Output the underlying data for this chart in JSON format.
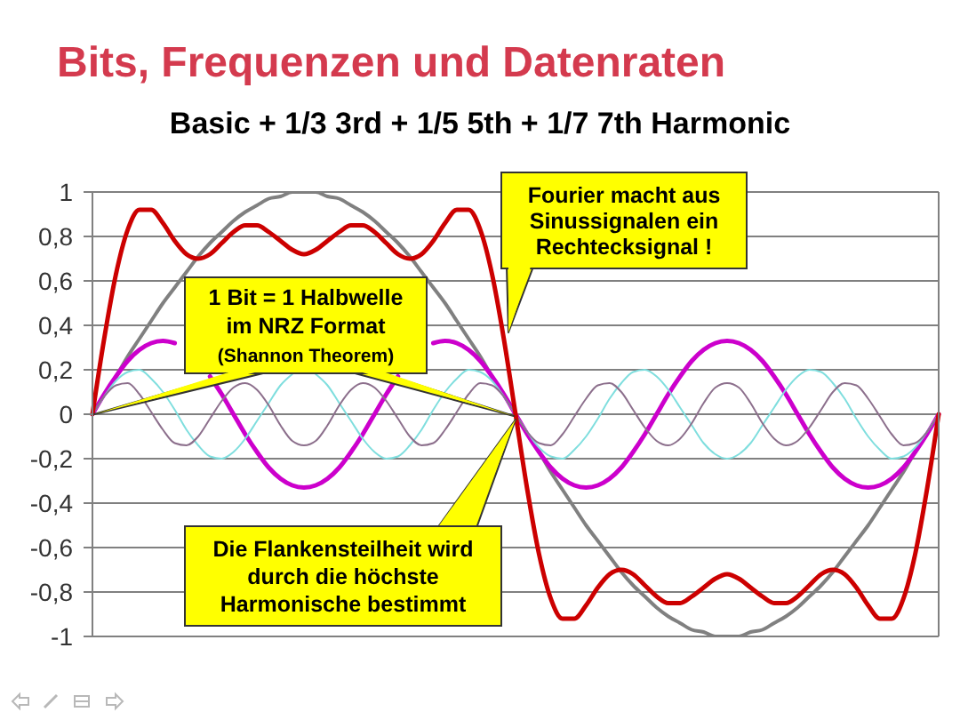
{
  "chart_data": {
    "type": "line",
    "title": "Bits, Frequenzen und Datenraten",
    "subtitle": "Basic + 1/3 3rd + 1/5 5th + 1/7 7th Harmonic",
    "annotations": [
      "Fourier macht aus\nSinussignalen ein\nRechtecksignal !",
      "1 Bit = 1 Halbwelle\nim NRZ Format\n(Shannon Theorem)",
      "Die Flankensteilheit wird\ndurch die höchste\nHarmonische bestimmt"
    ],
    "categories": [
      null,
      null,
      null,
      null,
      null,
      null,
      null,
      null,
      null,
      null,
      null,
      null,
      null,
      null,
      null,
      null,
      null,
      null,
      null,
      null,
      null,
      null,
      null,
      null,
      null,
      null,
      null,
      null,
      null,
      null,
      null,
      null,
      null,
      null,
      null,
      null,
      null,
      null,
      null,
      null,
      null,
      null,
      null,
      null,
      null,
      null,
      null,
      null,
      null,
      null,
      null,
      null,
      null,
      null,
      null,
      null,
      null,
      null,
      null,
      null,
      null,
      null,
      null,
      null,
      null,
      null,
      null,
      null,
      null,
      null,
      null,
      null,
      null
    ],
    "series": [
      {
        "color": "#808080",
        "values": [
          0,
          0.09,
          0.17,
          0.26,
          0.34,
          0.42,
          0.5,
          0.57,
          0.64,
          0.71,
          0.77,
          0.82,
          0.87,
          0.91,
          0.94,
          0.97,
          0.98,
          1,
          1,
          1,
          0.98,
          0.97,
          0.94,
          0.91,
          0.87,
          0.82,
          0.77,
          0.71,
          0.64,
          0.57,
          0.5,
          0.42,
          0.34,
          0.26,
          0.17,
          0.09,
          0,
          -0.09,
          -0.17,
          -0.26,
          -0.34,
          -0.42,
          -0.5,
          -0.57,
          -0.64,
          -0.71,
          -0.77,
          -0.82,
          -0.87,
          -0.91,
          -0.94,
          -0.97,
          -0.98,
          -1,
          -1,
          -1,
          -0.98,
          -0.97,
          -0.94,
          -0.91,
          -0.87,
          -0.82,
          -0.77,
          -0.71,
          -0.64,
          -0.57,
          -0.5,
          -0.42,
          -0.34,
          -0.26,
          -0.17,
          -0.09,
          0
        ]
      },
      {
        "color": "#cc00cc",
        "values": [
          0,
          0.09,
          0.17,
          0.24,
          0.29,
          0.32,
          0.33,
          0.32,
          null,
          null,
          0.17,
          0.09,
          0,
          -0.09,
          -0.17,
          -0.24,
          -0.29,
          -0.32,
          -0.33,
          -0.32,
          -0.29,
          -0.24,
          -0.17,
          -0.09,
          0,
          0.09,
          0.17,
          null,
          null,
          0.32,
          0.33,
          0.32,
          0.29,
          0.24,
          0.17,
          0.09,
          0,
          -0.09,
          -0.17,
          -0.24,
          -0.29,
          -0.32,
          -0.33,
          -0.32,
          -0.29,
          -0.24,
          -0.17,
          -0.09,
          0,
          0.09,
          0.17,
          0.24,
          0.29,
          0.32,
          0.33,
          0.32,
          0.29,
          0.24,
          0.17,
          0.09,
          0,
          -0.09,
          -0.17,
          -0.24,
          -0.29,
          -0.32,
          -0.33,
          -0.32,
          -0.29,
          -0.24,
          -0.17,
          -0.09,
          0
        ]
      },
      {
        "color": "#7fdede",
        "values": [
          0,
          0.08,
          0.15,
          0.19,
          0.2,
          0.16,
          0.1,
          0.02,
          -0.07,
          -0.14,
          -0.19,
          -0.2,
          -0.17,
          -0.11,
          -0.03,
          0.05,
          0.13,
          0.18,
          null,
          0.18,
          0.13,
          0.05,
          -0.03,
          -0.11,
          -0.17,
          -0.2,
          -0.19,
          -0.14,
          -0.07,
          0.02,
          0.1,
          0.16,
          0.2,
          0.19,
          0.15,
          0.08,
          0,
          -0.08,
          -0.15,
          -0.19,
          -0.2,
          -0.16,
          -0.1,
          -0.02,
          0.07,
          0.14,
          0.19,
          0.2,
          0.17,
          0.11,
          0.03,
          -0.05,
          -0.13,
          -0.18,
          -0.2,
          -0.18,
          -0.13,
          -0.05,
          0.03,
          0.11,
          0.17,
          0.2,
          0.19,
          0.14,
          0.07,
          -0.02,
          -0.1,
          -0.16,
          -0.2,
          -0.19,
          -0.15,
          -0.08,
          0
        ]
      },
      {
        "color": "#8c6f8c",
        "values": [
          0,
          0.08,
          0.13,
          0.14,
          0.09,
          0.01,
          -0.07,
          -0.13,
          -0.14,
          -0.1,
          -0.02,
          0.06,
          0.12,
          0.14,
          0.11,
          0.04,
          -0.05,
          -0.12,
          -0.14,
          -0.12,
          -0.05,
          0.04,
          0.11,
          0.14,
          0.12,
          0.06,
          -0.02,
          -0.1,
          -0.14,
          -0.13,
          -0.07,
          0.01,
          0.09,
          0.14,
          0.13,
          0.08,
          0,
          -0.08,
          -0.13,
          -0.14,
          -0.09,
          -0.01,
          0.07,
          0.13,
          0.14,
          0.1,
          0.02,
          -0.06,
          -0.12,
          -0.14,
          -0.11,
          -0.04,
          0.05,
          0.12,
          0.14,
          0.12,
          0.05,
          -0.04,
          -0.11,
          -0.14,
          -0.12,
          -0.06,
          0.02,
          0.1,
          0.14,
          0.13,
          0.07,
          -0.01,
          -0.09,
          -0.14,
          -0.13,
          -0.08,
          0
        ]
      },
      {
        "color": "#cc0000",
        "values": [
          0,
          0.34,
          0.63,
          0.83,
          0.92,
          0.92,
          0.86,
          0.78,
          0.72,
          0.7,
          0.72,
          0.77,
          0.82,
          0.85,
          0.85,
          0.82,
          0.78,
          0.74,
          0.72,
          0.74,
          0.78,
          0.82,
          0.85,
          0.85,
          0.82,
          0.77,
          0.72,
          0.7,
          0.72,
          0.78,
          0.86,
          0.92,
          0.92,
          0.83,
          0.63,
          0.34,
          0,
          -0.34,
          -0.63,
          -0.83,
          -0.92,
          -0.92,
          -0.86,
          -0.78,
          -0.72,
          -0.7,
          -0.72,
          -0.77,
          -0.82,
          -0.85,
          -0.85,
          -0.82,
          -0.78,
          -0.74,
          -0.72,
          -0.74,
          -0.78,
          -0.82,
          -0.85,
          -0.85,
          -0.82,
          -0.77,
          -0.72,
          -0.7,
          -0.72,
          -0.78,
          -0.86,
          -0.92,
          -0.92,
          -0.83,
          -0.63,
          -0.34,
          0
        ]
      }
    ],
    "ylim": [
      -1,
      1
    ],
    "yticks": [
      -1,
      {
        "value": -0.8,
        "label": "-0,8"
      },
      {
        "value": -0.6,
        "label": "-0,6"
      },
      {
        "value": -0.4,
        "label": "-0,4"
      },
      {
        "value": -0.2,
        "label": "-0,2"
      },
      0,
      {
        "value": 0.2,
        "label": "0,2"
      },
      {
        "value": 0.4,
        "label": "0,4"
      },
      {
        "value": 0.6,
        "label": "0,6"
      },
      {
        "value": 0.8,
        "label": "0,8"
      },
      1
    ],
    "grid": "y",
    "tick_labels": "y",
    "marker": "none"
  }
}
